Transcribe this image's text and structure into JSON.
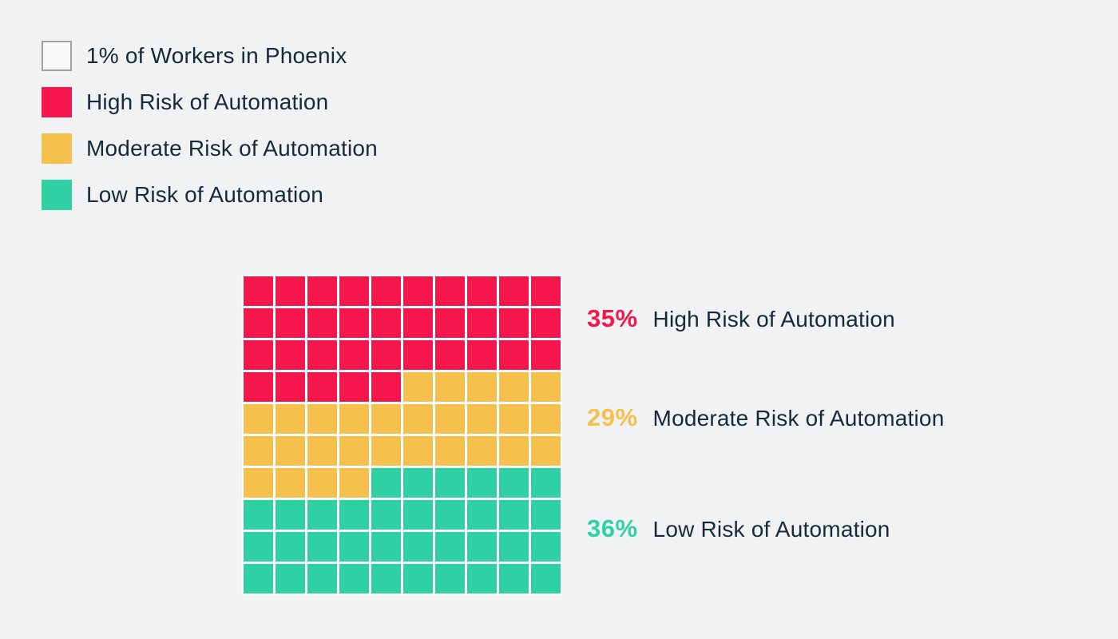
{
  "background": "#F0F2F4",
  "text_color": "#17293B",
  "legend": {
    "items": [
      {
        "label": "1% of Workers in Phoenix",
        "swatch_fill": "#F8F9FB",
        "swatch_border": "#9EA2A6"
      },
      {
        "label": "High Risk of Automation",
        "swatch_fill": "#F5174C"
      },
      {
        "label": "Moderate Risk of Automation",
        "swatch_fill": "#F5C04B"
      },
      {
        "label": "Low Risk of Automation",
        "swatch_fill": "#2FD1A4"
      }
    ]
  },
  "chart_data": {
    "type": "waffle",
    "title": "",
    "unit_label": "1% of Workers in Phoenix",
    "grid": {
      "rows": 10,
      "cols": 10,
      "unit_percent": 1,
      "fill_order": "left-to-right, top-to-bottom"
    },
    "gap_color": "#FFFFFF",
    "series": [
      {
        "name": "High Risk of Automation",
        "value": 35,
        "color": "#F5174C"
      },
      {
        "name": "Moderate Risk of Automation",
        "value": 29,
        "color": "#F5C04B"
      },
      {
        "name": "Low Risk of Automation",
        "value": 36,
        "color": "#2FD1A4"
      }
    ]
  },
  "stats": [
    {
      "percent": "35%",
      "label": "High Risk of Automation",
      "color": "#F5174C"
    },
    {
      "percent": "29%",
      "label": "Moderate Risk of Automation",
      "color": "#F5C04B"
    },
    {
      "percent": "36%",
      "label": "Low Risk of Automation",
      "color": "#2FD1A4"
    }
  ]
}
